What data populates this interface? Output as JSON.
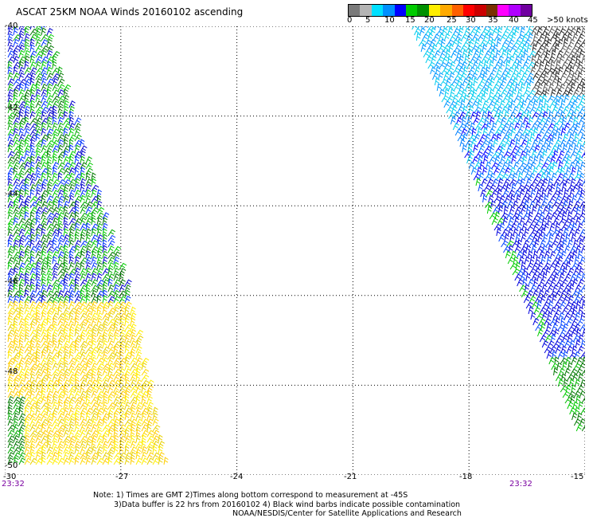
{
  "title": "ASCAT 25KM NOAA Winds 20160102 ascending",
  "legend": {
    "colors": [
      "#7a7a7a",
      "#b4b4b4",
      "#00e0ff",
      "#0090ff",
      "#0000ff",
      "#00cc00",
      "#009000",
      "#ffee00",
      "#ffaa00",
      "#ff6000",
      "#ff0000",
      "#cc0000",
      "#7a3000",
      "#ff00ff",
      "#b000ff",
      "#7000a0"
    ],
    "labels": [
      "0",
      "5",
      "10",
      "15",
      "20",
      "25",
      "30",
      "35",
      "40",
      "45",
      ">50 knots"
    ]
  },
  "map": {
    "lat_labels": [
      "-40",
      "-42",
      "-44",
      "-46",
      "-48",
      "-50"
    ],
    "lon_labels": [
      "-30",
      "-27",
      "-24",
      "-21",
      "-18",
      "-15"
    ],
    "lat_values": [
      -40,
      -42,
      -44,
      -46,
      -48,
      -50
    ],
    "lon_values": [
      -30,
      -27,
      -24,
      -21,
      -18,
      -15
    ],
    "time_left": "23:32",
    "time_right": "23:32"
  },
  "notes": {
    "line1": "Note: 1) Times are GMT 2)Times along bottom correspond to measurement at -45S",
    "line2": "3)Data buffer is 22 hrs from 20160102 4) Black wind barbs indicate possible contamination",
    "line3": "NOAA/NESDIS/Center for Satellite Applications and Research"
  }
}
